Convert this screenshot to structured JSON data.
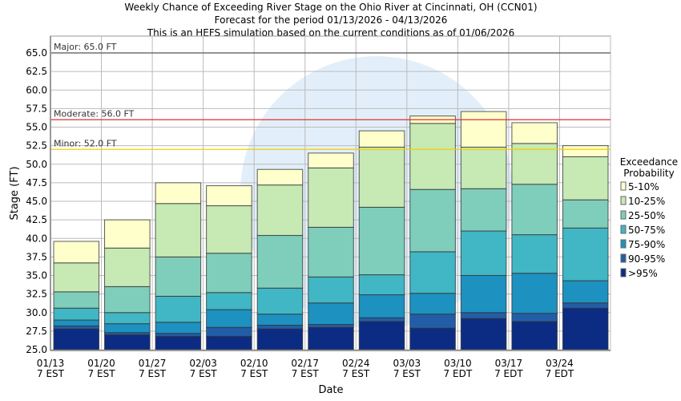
{
  "chart_data": {
    "type": "bar",
    "stacked": true,
    "title": [
      "Weekly Chance of Exceeding River Stage on the Ohio River at Cincinnati, OH (CCN01)",
      "Forecast for the period 01/13/2026 - 04/13/2026",
      "This is an HEFS simulation based on the current conditions as of 01/06/2026"
    ],
    "xlabel": "Date",
    "ylabel": "Stage (FT)",
    "ylim": [
      25,
      67.4
    ],
    "yticks": [
      "25.0",
      "27.5",
      "30.0",
      "32.5",
      "35.0",
      "37.5",
      "40.0",
      "42.5",
      "45.0",
      "47.5",
      "50.0",
      "52.5",
      "55.0",
      "57.5",
      "60.0",
      "62.5",
      "65.0"
    ],
    "xticks": [
      [
        "01/13",
        "7 EST"
      ],
      [
        "01/20",
        "7 EST"
      ],
      [
        "01/27",
        "7 EST"
      ],
      [
        "02/03",
        "7 EST"
      ],
      [
        "02/10",
        "7 EST"
      ],
      [
        "02/17",
        "7 EST"
      ],
      [
        "02/24",
        "7 EST"
      ],
      [
        "03/03",
        "7 EST"
      ],
      [
        "03/10",
        "7 EDT"
      ],
      [
        "03/17",
        "7 EDT"
      ],
      [
        "03/24",
        "7 EDT"
      ]
    ],
    "grid": true,
    "legend_title": [
      "Exceedance",
      "Probability"
    ],
    "legend_position": "right",
    "series": [
      {
        "name": ">95%",
        "color": "#0c2c84"
      },
      {
        "name": "90-95%",
        "color": "#225ea8"
      },
      {
        "name": "75-90%",
        "color": "#1d91c0"
      },
      {
        "name": "50-75%",
        "color": "#41b6c4"
      },
      {
        "name": "25-50%",
        "color": "#7fcdbb"
      },
      {
        "name": "10-25%",
        "color": "#c7e9b4"
      },
      {
        "name": "5-10%",
        "color": "#ffffcc"
      }
    ],
    "stack_tops": [
      [
        27.8,
        28.2,
        29.0,
        30.6,
        32.8,
        36.7,
        39.6
      ],
      [
        27.0,
        27.3,
        28.5,
        30.0,
        33.5,
        38.7,
        42.5
      ],
      [
        26.8,
        27.2,
        28.7,
        32.2,
        37.5,
        44.7,
        47.5
      ],
      [
        26.8,
        28.0,
        30.4,
        32.7,
        38.0,
        44.4,
        47.1
      ],
      [
        27.8,
        28.3,
        29.8,
        33.3,
        40.4,
        47.2,
        49.3
      ],
      [
        28.0,
        28.4,
        31.3,
        34.8,
        41.5,
        49.5,
        51.5
      ],
      [
        28.8,
        29.3,
        32.4,
        35.1,
        44.2,
        52.3,
        54.5
      ],
      [
        27.9,
        29.8,
        32.6,
        38.2,
        46.6,
        55.5,
        56.5
      ],
      [
        29.2,
        30.0,
        35.0,
        41.0,
        46.7,
        52.3,
        57.1
      ],
      [
        28.8,
        29.9,
        35.3,
        40.5,
        47.3,
        52.8,
        55.6
      ],
      [
        30.6,
        31.3,
        34.3,
        41.4,
        45.2,
        51.0,
        52.5
      ]
    ],
    "thresholds": [
      {
        "label": "Major: 65.0 FT",
        "value": 65.0,
        "color": "#555555"
      },
      {
        "label": "Moderate: 56.0 FT",
        "value": 56.0,
        "color": "#e03030"
      },
      {
        "label": "Minor: 52.0 FT",
        "value": 52.0,
        "color": "#f0d000"
      }
    ]
  }
}
